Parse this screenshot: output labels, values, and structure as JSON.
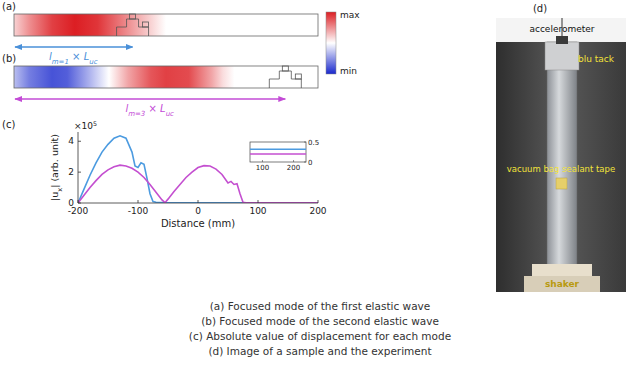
{
  "panels": {
    "a": {
      "label": "(a)",
      "xlim": [
        -200,
        200
      ],
      "field": {
        "x": [
          -200,
          -180,
          -150,
          -120,
          -90,
          -60,
          -30,
          -10,
          0,
          200
        ],
        "values": [
          0.2,
          0.5,
          0.85,
          1.0,
          0.9,
          0.6,
          0.3,
          0.1,
          0,
          0
        ]
      },
      "arrow_end": -44,
      "length_label": [
        {
          "text": "l"
        },
        {
          "text": "m=1",
          "sub": true
        },
        {
          "text": " × L"
        },
        {
          "text": "uc",
          "sub": true
        }
      ],
      "color": "#4a90d9"
    },
    "b": {
      "label": "(b)",
      "xlim": [
        -200,
        200
      ],
      "field": {
        "x": [
          -200,
          -180,
          -150,
          -130,
          -100,
          -75,
          -50,
          -20,
          0,
          30,
          60,
          75,
          90,
          200
        ],
        "values": [
          -0.3,
          -0.6,
          -0.8,
          -0.75,
          -0.35,
          0,
          0.4,
          0.75,
          0.85,
          0.8,
          0.4,
          0.15,
          0,
          0
        ]
      },
      "arrow_end": 157,
      "length_label": [
        {
          "text": "l"
        },
        {
          "text": "m=3",
          "sub": true
        },
        {
          "text": " × L"
        },
        {
          "text": "uc",
          "sub": true
        }
      ],
      "color": "#c34bd6"
    },
    "c": {
      "label": "(c)"
    },
    "d": {
      "label": "(d)"
    }
  },
  "colorbar": {
    "range": [
      -1,
      1
    ],
    "max_label": "max",
    "min_label": "min"
  },
  "chart_data": {
    "type": "line",
    "x_label": "Distance (mm)",
    "y_label": [
      {
        "text": "|u"
      },
      {
        "text": "x",
        "sub": true
      },
      {
        "text": "| (arb. unit)"
      }
    ],
    "y_multiplier": [
      {
        "text": "×10"
      },
      {
        "text": "5",
        "sup": true
      }
    ],
    "xlim": [
      -200,
      200
    ],
    "xticks": [
      -200,
      -100,
      0,
      100,
      200
    ],
    "ylim": [
      0,
      4.6
    ],
    "yticks": [
      0,
      2,
      4
    ],
    "series": [
      {
        "color": "#4c9be0",
        "x": [
          -200,
          -190,
          -180,
          -170,
          -160,
          -150,
          -140,
          -130,
          -120,
          -110,
          -105,
          -100,
          -95,
          -90,
          -85,
          -80,
          -75,
          -70,
          -50,
          0,
          50,
          100,
          150,
          200
        ],
        "values": [
          0,
          0.9,
          1.8,
          2.6,
          3.3,
          3.8,
          4.2,
          4.35,
          4.2,
          3.3,
          2.4,
          2.3,
          2.6,
          2.5,
          1.6,
          0.6,
          0.1,
          0.05,
          0.02,
          0.01,
          0.01,
          0.01,
          0.01,
          0.01
        ]
      },
      {
        "color": "#c44fd0",
        "x": [
          -200,
          -190,
          -180,
          -170,
          -160,
          -150,
          -140,
          -130,
          -120,
          -110,
          -100,
          -90,
          -80,
          -70,
          -60,
          -55,
          -50,
          -40,
          -30,
          -20,
          -10,
          0,
          10,
          20,
          30,
          40,
          50,
          55,
          60,
          65,
          70,
          75,
          80,
          100,
          150,
          200
        ],
        "values": [
          0,
          0.5,
          1.0,
          1.45,
          1.85,
          2.15,
          2.35,
          2.45,
          2.4,
          2.25,
          2.0,
          1.65,
          1.2,
          0.7,
          0.2,
          0.02,
          0.25,
          0.75,
          1.2,
          1.65,
          2.0,
          2.3,
          2.42,
          2.4,
          2.2,
          1.85,
          1.3,
          1.4,
          1.2,
          1.25,
          0.6,
          0.05,
          0.02,
          0.01,
          0.01,
          0.01
        ]
      }
    ],
    "inset": {
      "xlim": [
        60,
        240
      ],
      "xticks": [
        100,
        200
      ],
      "ylim": [
        0,
        0.5
      ],
      "yticks": [
        0,
        0.5
      ],
      "series": [
        {
          "color": "#4c9be0",
          "x": [
            60,
            240
          ],
          "values": [
            0.32,
            0.32
          ]
        },
        {
          "color": "#c44fd0",
          "x": [
            60,
            240
          ],
          "values": [
            0.2,
            0.2
          ]
        }
      ]
    }
  },
  "photo": {
    "accelerometer": "accelerometer",
    "blu_tack": "blu tack",
    "tape": "vacuum bag sealant tape",
    "shaker": "shaker"
  },
  "caption": [
    "(a) Focused mode of the first elastic wave",
    "(b) Focused mode of the second elastic wave",
    "(c) Absolute value of displacement for each mode",
    "(d) Image of a sample and the experiment"
  ]
}
